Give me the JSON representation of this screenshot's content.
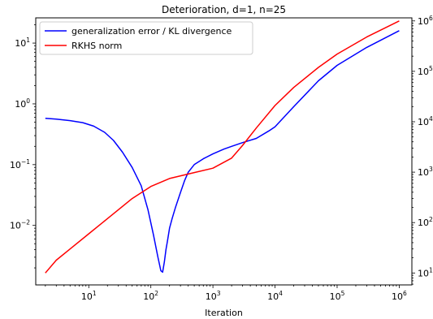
{
  "chart_data": {
    "type": "line",
    "title": "Deterioration, d=1, n=25",
    "xlabel": "Iteration",
    "ylabel": "",
    "y2label": "",
    "xscale": "log",
    "yscale": "log",
    "y2scale": "log",
    "xlim": [
      1.4,
      1600000
    ],
    "ylim": [
      0.00105,
      26
    ],
    "y2lim": [
      5.8,
      1150000
    ],
    "grid": false,
    "legend_position": "top-left",
    "x_ticks": [
      {
        "base": "10",
        "exp": "1"
      },
      {
        "base": "10",
        "exp": "2"
      },
      {
        "base": "10",
        "exp": "3"
      },
      {
        "base": "10",
        "exp": "4"
      },
      {
        "base": "10",
        "exp": "5"
      },
      {
        "base": "10",
        "exp": "6"
      }
    ],
    "y_ticks": [
      {
        "base": "10",
        "exp": "1"
      },
      {
        "base": "10",
        "exp": "0"
      },
      {
        "base": "10",
        "exp": "−1"
      },
      {
        "base": "10",
        "exp": "−2"
      }
    ],
    "y2_ticks": [
      {
        "base": "10",
        "exp": "6"
      },
      {
        "base": "10",
        "exp": "5"
      },
      {
        "base": "10",
        "exp": "4"
      },
      {
        "base": "10",
        "exp": "3"
      },
      {
        "base": "10",
        "exp": "2"
      },
      {
        "base": "10",
        "exp": "1"
      }
    ],
    "series": [
      {
        "name": "generalization error / KL divergence",
        "axis": "left",
        "color": "#0000ff",
        "x": [
          2,
          3,
          5,
          8,
          12,
          18,
          25,
          35,
          50,
          70,
          90,
          110,
          130,
          145,
          155,
          165,
          175,
          185,
          200,
          220,
          250,
          300,
          350,
          400,
          500,
          700,
          1000,
          1500,
          2000,
          3000,
          5000,
          8000,
          10000,
          20000,
          50000,
          100000,
          300000,
          1000000
        ],
        "y": [
          0.58,
          0.56,
          0.53,
          0.49,
          0.43,
          0.34,
          0.25,
          0.16,
          0.09,
          0.045,
          0.018,
          0.007,
          0.003,
          0.0018,
          0.0017,
          0.0025,
          0.004,
          0.0055,
          0.009,
          0.013,
          0.02,
          0.035,
          0.055,
          0.075,
          0.1,
          0.125,
          0.15,
          0.18,
          0.2,
          0.23,
          0.27,
          0.36,
          0.42,
          0.9,
          2.4,
          4.3,
          8.5,
          16
        ]
      },
      {
        "name": "RKHS norm",
        "axis": "right",
        "color": "#ff0000",
        "x": [
          2,
          3,
          5,
          10,
          20,
          50,
          100,
          200,
          500,
          1000,
          2000,
          3000,
          5000,
          10000,
          20000,
          50000,
          100000,
          300000,
          1000000
        ],
        "y": [
          10,
          18,
          30,
          60,
          120,
          300,
          520,
          750,
          980,
          1200,
          1900,
          3400,
          7500,
          21000,
          48000,
          120000,
          220000,
          480000,
          1000000
        ]
      }
    ]
  }
}
